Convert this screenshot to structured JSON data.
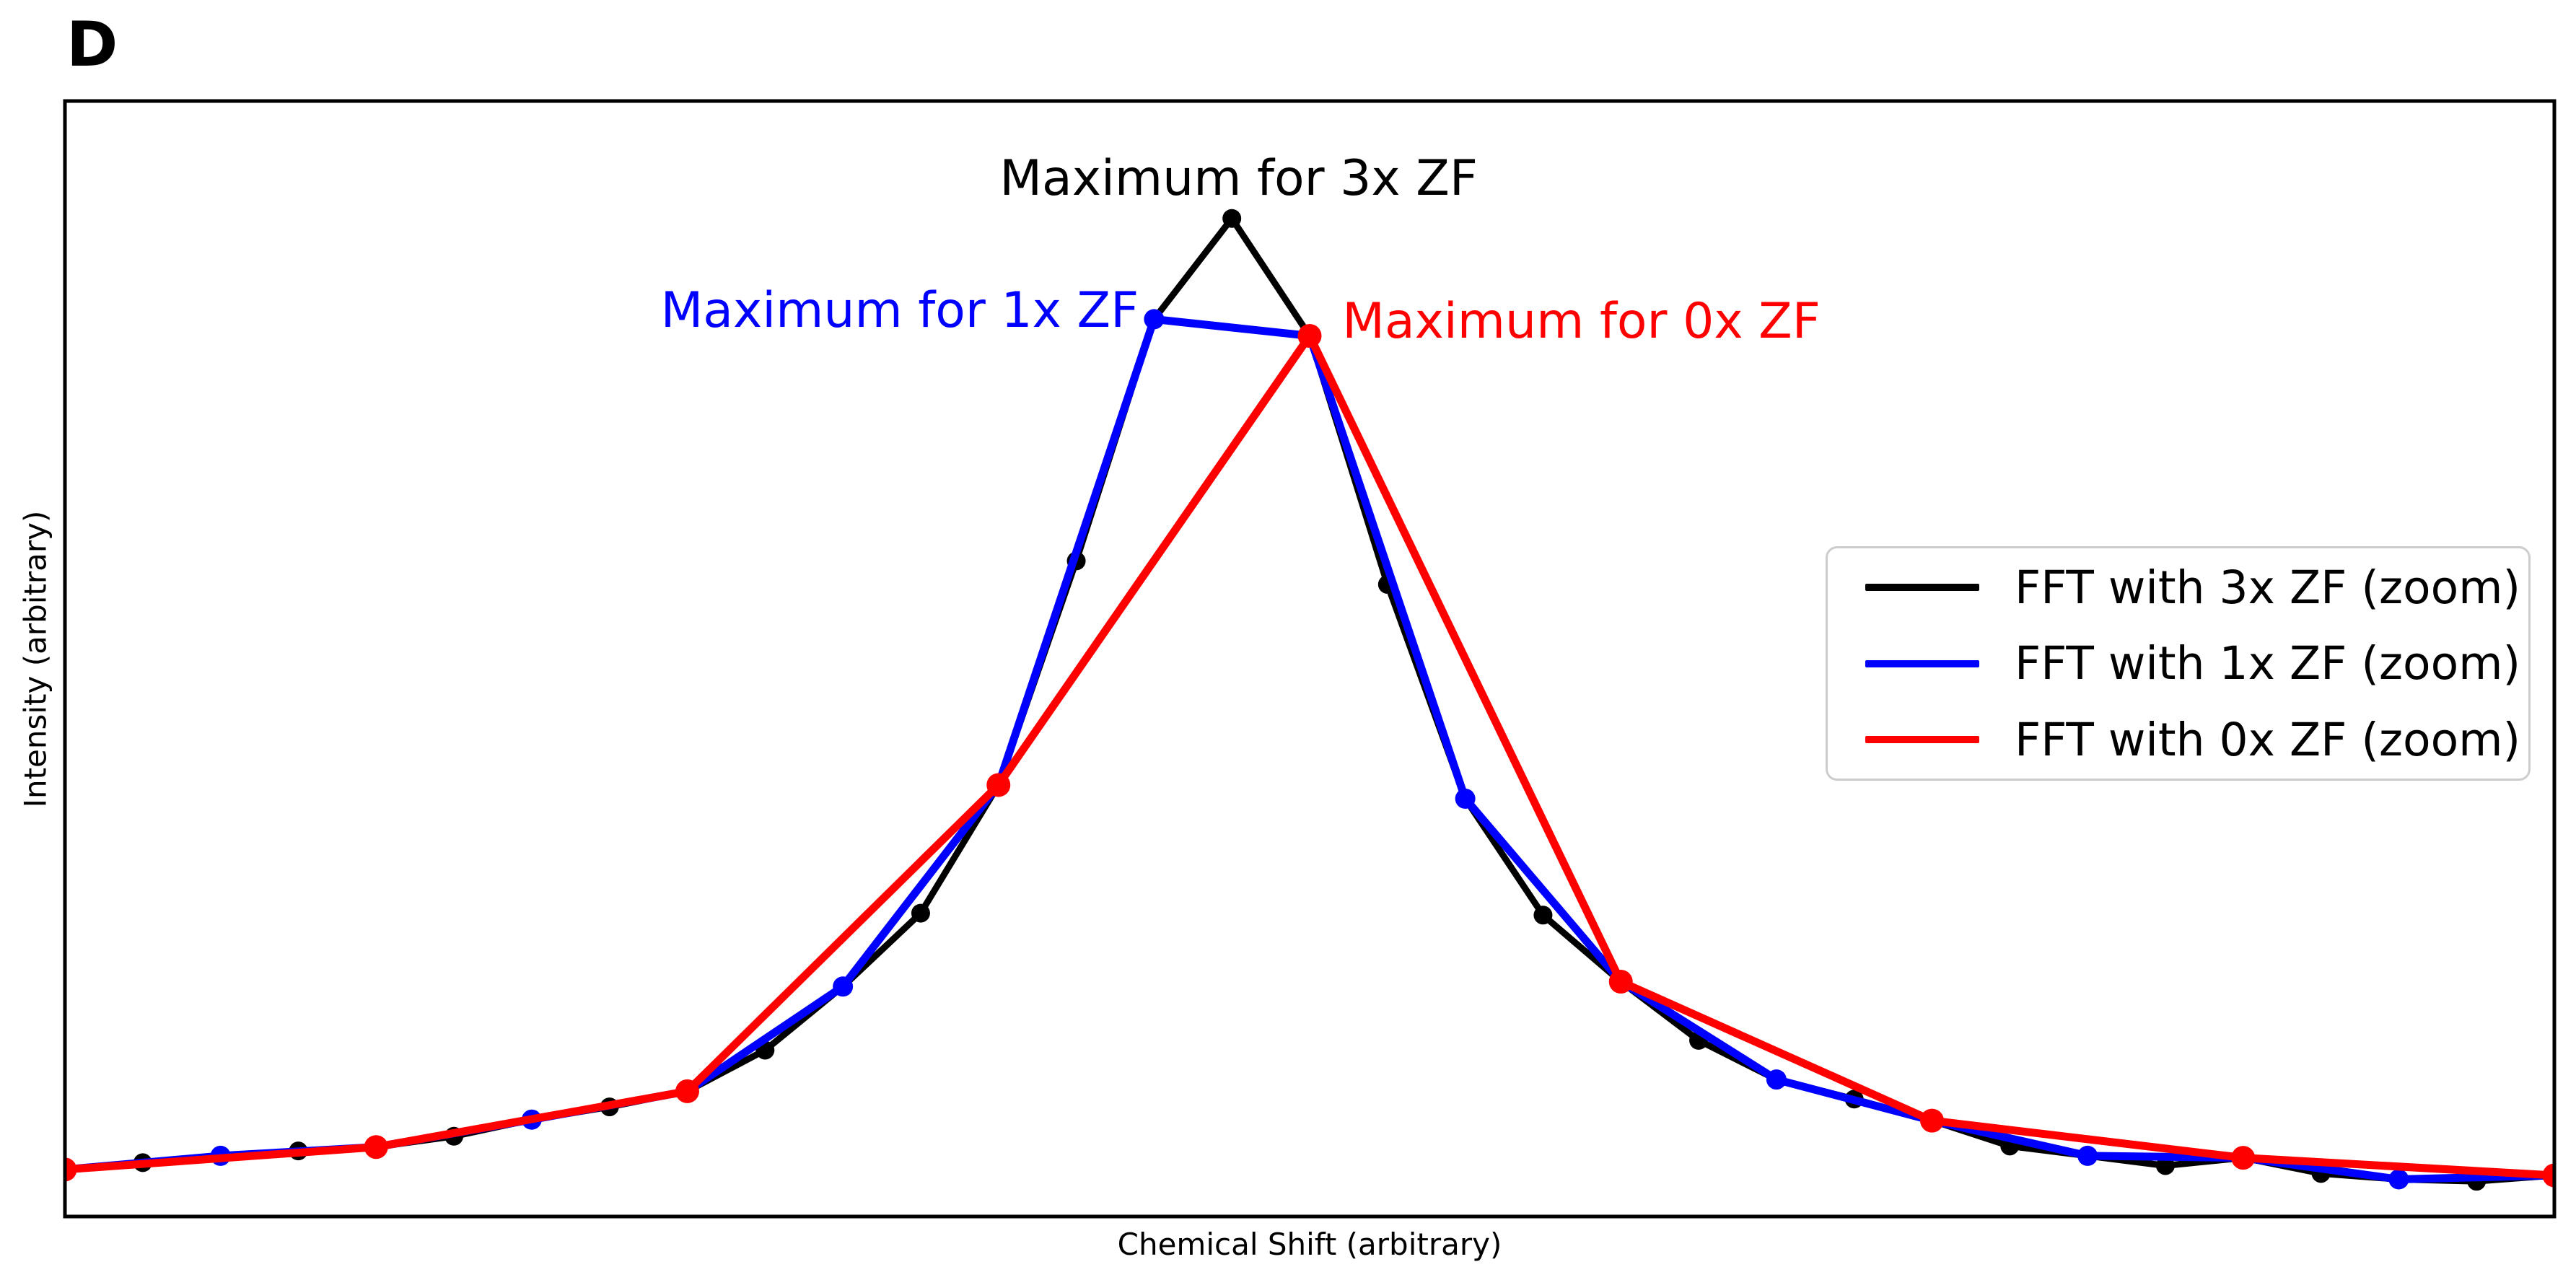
{
  "panel_label": "D",
  "chart_data": {
    "type": "line",
    "title": "",
    "xlabel": "Chemical Shift (arbitrary)",
    "ylabel": "Intensity (arbitrary)",
    "xlim": [
      0,
      8
    ],
    "ylim": [
      -0.02,
      1.12
    ],
    "grid": false,
    "ticks": "none",
    "legend_position": "center right",
    "background_color": "#ffffff",
    "axes_edge_color": "#000000",
    "series": [
      {
        "name": "FFT with 3x ZF (zoom)",
        "color": "#000000",
        "marker": "circle",
        "x": [
          0,
          0.25,
          0.5,
          0.75,
          1,
          1.25,
          1.5,
          1.75,
          2,
          2.25,
          2.5,
          2.75,
          3,
          3.25,
          3.5,
          3.75,
          4,
          4.25,
          4.5,
          4.75,
          5,
          5.25,
          5.5,
          5.75,
          6,
          6.25,
          6.5,
          6.75,
          7,
          7.25,
          7.5,
          7.75,
          8
        ],
        "y": [
          0.028,
          0.035,
          0.042,
          0.047,
          0.051,
          0.062,
          0.079,
          0.092,
          0.108,
          0.15,
          0.215,
          0.29,
          0.421,
          0.65,
          0.897,
          1.0,
          0.88,
          0.626,
          0.407,
          0.288,
          0.22,
          0.16,
          0.12,
          0.1,
          0.078,
          0.052,
          0.042,
          0.032,
          0.04,
          0.024,
          0.018,
          0.016,
          0.022
        ]
      },
      {
        "name": "FFT with 1x ZF (zoom)",
        "color": "#0000ff",
        "marker": "circle",
        "x": [
          0,
          0.5,
          1,
          1.5,
          2,
          2.5,
          3,
          3.5,
          4,
          4.5,
          5,
          5.5,
          6,
          6.5,
          7,
          7.5,
          8
        ],
        "y": [
          0.028,
          0.042,
          0.051,
          0.079,
          0.108,
          0.215,
          0.421,
          0.897,
          0.88,
          0.407,
          0.22,
          0.12,
          0.078,
          0.042,
          0.04,
          0.018,
          0.022
        ]
      },
      {
        "name": "FFT with 0x ZF (zoom)",
        "color": "#ff0000",
        "marker": "circle",
        "x": [
          0,
          1,
          2,
          3,
          4,
          5,
          6,
          7,
          8
        ],
        "y": [
          0.028,
          0.051,
          0.108,
          0.421,
          0.88,
          0.22,
          0.078,
          0.04,
          0.022
        ]
      }
    ],
    "annotations": [
      {
        "text": "Maximum for 3x ZF",
        "color": "#000000",
        "x": 3.772,
        "y": 1.041,
        "anchor": "center"
      },
      {
        "text": "Maximum for 1x ZF",
        "color": "#0000ff",
        "x": 3.451,
        "y": 0.906,
        "anchor": "right"
      },
      {
        "text": "Maximum for 0x ZF",
        "color": "#ff0000",
        "x": 4.105,
        "y": 0.895,
        "anchor": "left"
      }
    ]
  }
}
